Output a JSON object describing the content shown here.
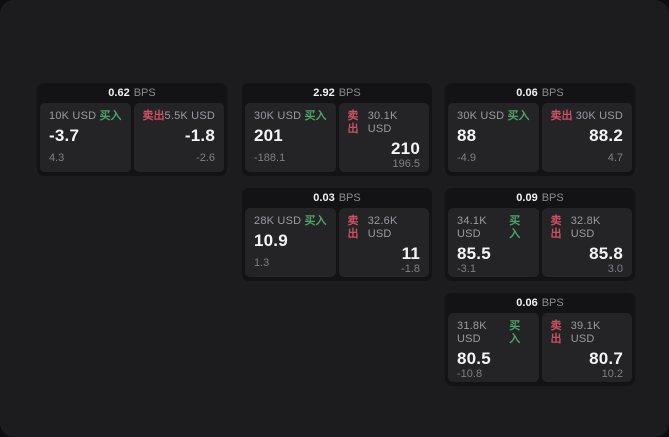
{
  "labels": {
    "buy": "买入",
    "sell": "卖出",
    "bps_unit": "BPS"
  },
  "colors": {
    "buy_green": "#4ca368",
    "sell_red": "#ce5061",
    "window_bg": "#1c1c1e",
    "card_bg": "#131315",
    "panel_bg": "#242427"
  },
  "cards": [
    {
      "bps": "0.62",
      "row": 1,
      "col": 1,
      "buy": {
        "amount": "10K USD",
        "value": "-3.7",
        "delta": "4.3"
      },
      "sell": {
        "amount": "5.5K USD",
        "value": "-1.8",
        "delta": "-2.6"
      }
    },
    {
      "bps": "2.92",
      "row": 1,
      "col": 2,
      "buy": {
        "amount": "30K USD",
        "value": "201",
        "delta": "-188.1"
      },
      "sell": {
        "amount": "30.1K USD",
        "value": "210",
        "delta": "196.5"
      }
    },
    {
      "bps": "0.06",
      "row": 1,
      "col": 3,
      "buy": {
        "amount": "30K USD",
        "value": "88",
        "delta": "-4.9"
      },
      "sell": {
        "amount": "30K USD",
        "value": "88.2",
        "delta": "4.7"
      }
    },
    {
      "bps": "0.03",
      "row": 2,
      "col": 2,
      "buy": {
        "amount": "28K USD",
        "value": "10.9",
        "delta": "1.3"
      },
      "sell": {
        "amount": "32.6K USD",
        "value": "11",
        "delta": "-1.8"
      }
    },
    {
      "bps": "0.09",
      "row": 2,
      "col": 3,
      "buy": {
        "amount": "34.1K USD",
        "value": "85.5",
        "delta": "-3.1"
      },
      "sell": {
        "amount": "32.8K USD",
        "value": "85.8",
        "delta": "3.0"
      }
    },
    {
      "bps": "0.06",
      "row": 3,
      "col": 3,
      "buy": {
        "amount": "31.8K USD",
        "value": "80.5",
        "delta": "-10.8"
      },
      "sell": {
        "amount": "39.1K USD",
        "value": "80.7",
        "delta": "10.2"
      }
    }
  ]
}
